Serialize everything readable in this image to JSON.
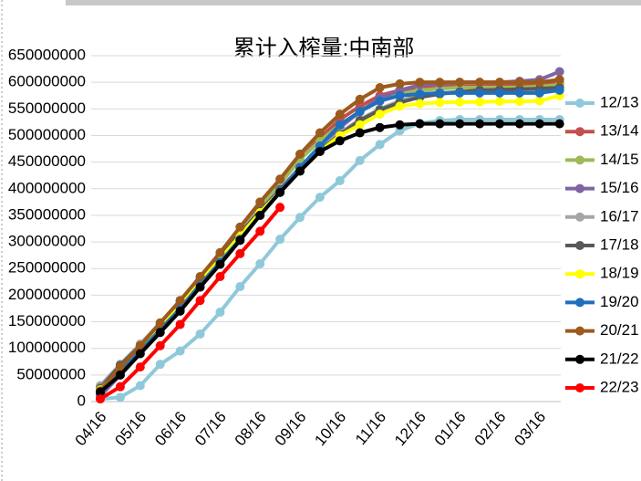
{
  "chart_data": {
    "type": "line",
    "title": "累计入榨量:中南部",
    "categories": [
      "04/16",
      null,
      "05/16",
      null,
      "06/16",
      null,
      "07/16",
      null,
      "08/16",
      null,
      "09/16",
      null,
      "10/16",
      null,
      "11/16",
      null,
      "12/16",
      null,
      "01/16",
      null,
      "02/16",
      null,
      "03/16",
      null
    ],
    "ylim": [
      0,
      650000000
    ],
    "yticks": [
      0,
      50000000,
      100000000,
      150000000,
      200000000,
      250000000,
      300000000,
      350000000,
      400000000,
      450000000,
      500000000,
      550000000,
      600000000,
      650000000
    ],
    "grid": true,
    "legend": "right",
    "series": [
      {
        "name": "12/13",
        "color": "#8fc9d9",
        "values": [
          5000000,
          8000000,
          30000000,
          70000000,
          95000000,
          127000000,
          168000000,
          216000000,
          259000000,
          305000000,
          346000000,
          384000000,
          415000000,
          453000000,
          483000000,
          509000000,
          523000000,
          528000000,
          530000000,
          530000000,
          530000000,
          530000000,
          530000000,
          530000000
        ]
      },
      {
        "name": "13/14",
        "color": "#c0504d",
        "values": [
          15000000,
          55000000,
          100000000,
          140000000,
          185000000,
          228000000,
          272000000,
          320000000,
          365000000,
          410000000,
          455000000,
          495000000,
          530000000,
          555000000,
          575000000,
          585000000,
          590000000,
          592000000,
          593000000,
          593000000,
          594000000,
          594000000,
          595000000,
          598000000
        ]
      },
      {
        "name": "14/15",
        "color": "#9bbb59",
        "values": [
          18000000,
          60000000,
          102000000,
          142000000,
          185000000,
          230000000,
          275000000,
          320000000,
          365000000,
          410000000,
          455000000,
          490000000,
          520000000,
          545000000,
          565000000,
          578000000,
          585000000,
          588000000,
          590000000,
          590000000,
          590000000,
          590000000,
          592000000,
          595000000
        ]
      },
      {
        "name": "15/16",
        "color": "#8064a2",
        "values": [
          10000000,
          50000000,
          90000000,
          130000000,
          175000000,
          220000000,
          265000000,
          310000000,
          355000000,
          400000000,
          440000000,
          480000000,
          515000000,
          545000000,
          570000000,
          585000000,
          595000000,
          598000000,
          600000000,
          600000000,
          600000000,
          602000000,
          605000000,
          620000000
        ]
      },
      {
        "name": "16/17",
        "color": "#a6a6a6",
        "values": [
          30000000,
          70000000,
          108000000,
          148000000,
          190000000,
          232000000,
          275000000,
          318000000,
          360000000,
          400000000,
          440000000,
          475000000,
          505000000,
          530000000,
          550000000,
          565000000,
          575000000,
          580000000,
          582000000,
          584000000,
          585000000,
          585000000,
          586000000,
          590000000
        ]
      },
      {
        "name": "17/18",
        "color": "#595959",
        "values": [
          25000000,
          68000000,
          105000000,
          145000000,
          188000000,
          230000000,
          273000000,
          316000000,
          358000000,
          398000000,
          438000000,
          472000000,
          502000000,
          528000000,
          548000000,
          562000000,
          572000000,
          578000000,
          582000000,
          585000000,
          586000000,
          587000000,
          588000000,
          590000000
        ]
      },
      {
        "name": "18/19",
        "color": "#ffff00",
        "values": [
          22000000,
          62000000,
          100000000,
          140000000,
          182000000,
          225000000,
          268000000,
          312000000,
          355000000,
          395000000,
          435000000,
          470000000,
          500000000,
          520000000,
          540000000,
          555000000,
          560000000,
          562000000,
          563000000,
          563000000,
          564000000,
          564000000,
          565000000,
          575000000
        ]
      },
      {
        "name": "19/20",
        "color": "#1f6fbf",
        "values": [
          15000000,
          55000000,
          95000000,
          135000000,
          175000000,
          220000000,
          262000000,
          305000000,
          350000000,
          395000000,
          440000000,
          480000000,
          520000000,
          545000000,
          565000000,
          575000000,
          578000000,
          580000000,
          580000000,
          580000000,
          580000000,
          580000000,
          580000000,
          585000000
        ]
      },
      {
        "name": "20/21",
        "color": "#9c5a1c",
        "values": [
          20000000,
          65000000,
          105000000,
          148000000,
          190000000,
          235000000,
          280000000,
          328000000,
          375000000,
          418000000,
          465000000,
          505000000,
          540000000,
          568000000,
          590000000,
          597000000,
          600000000,
          600000000,
          600000000,
          600000000,
          600000000,
          600000000,
          600000000,
          605000000
        ]
      },
      {
        "name": "21/22",
        "color": "#000000",
        "values": [
          18000000,
          50000000,
          90000000,
          130000000,
          170000000,
          215000000,
          258000000,
          303000000,
          350000000,
          393000000,
          433000000,
          470000000,
          490000000,
          505000000,
          515000000,
          520000000,
          522000000,
          522000000,
          522000000,
          522000000,
          522000000,
          522000000,
          522000000,
          522000000
        ]
      },
      {
        "name": "22/23",
        "color": "#ff0000",
        "values": [
          5000000,
          28000000,
          65000000,
          105000000,
          145000000,
          190000000,
          235000000,
          278000000,
          320000000,
          365000000,
          null,
          null,
          null,
          null,
          null,
          null,
          null,
          null,
          null,
          null,
          null,
          null,
          null,
          null
        ]
      }
    ]
  }
}
